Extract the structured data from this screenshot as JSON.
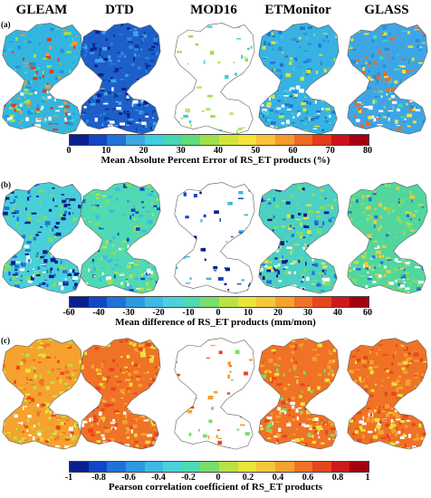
{
  "columns": [
    "GLEAM",
    "DTD",
    "MOD16",
    "ETMonitor",
    "GLASS"
  ],
  "rows": [
    {
      "label": "(a)",
      "colorbar_title": "Mean Absolute Percent Error of RS_ET products (%)",
      "tick_labels": [
        "0",
        "10",
        "20",
        "30",
        "40",
        "50",
        "60",
        "70",
        "80"
      ],
      "colors": [
        "#0a1f8f",
        "#1046c8",
        "#1f73d8",
        "#3fa6e6",
        "#3fcde0",
        "#45d7b4",
        "#5fdc7a",
        "#9ee04a",
        "#d4e53a",
        "#f3e33c",
        "#f9c23a",
        "#f59a2c",
        "#ef6a22",
        "#e63a1c",
        "#d0101a",
        "#a50010"
      ],
      "maps": [
        {
          "id": "gleam",
          "dominant": "#32b6e0",
          "minor": [
            "#2a8fd6",
            "#4fd2c6",
            "#9fe050",
            "#f59a2c",
            "#e63a1c"
          ]
        },
        {
          "id": "dtd",
          "dominant": "#1d5fc9",
          "minor": [
            "#2c86dc",
            "#133a9e",
            "#3fa6e6",
            "#0a1f8f"
          ]
        },
        {
          "id": "mod16",
          "dominant": "#ffffff",
          "minor": [
            "#bfe36a",
            "#9ee04a",
            "#3fcde0"
          ]
        },
        {
          "id": "etmonitor",
          "dominant": "#38b2e2",
          "minor": [
            "#2a8fd6",
            "#45c9d8",
            "#1f73d8",
            "#d4e53a"
          ]
        },
        {
          "id": "glass",
          "dominant": "#3fa6e6",
          "minor": [
            "#2a8fd6",
            "#45d7b4",
            "#f3e33c",
            "#ef6a22"
          ]
        }
      ]
    },
    {
      "label": "(b)",
      "colorbar_title": "Mean difference of RS_ET products (mm/mon)",
      "tick_labels": [
        "-60",
        "-40",
        "-30",
        "-20",
        "-10",
        "0",
        "10",
        "20",
        "30",
        "40",
        "60"
      ],
      "colors": [
        "#0a1f8f",
        "#1046c8",
        "#1f73d8",
        "#2c9ae0",
        "#3fb8e6",
        "#4cd0dc",
        "#4fd9b4",
        "#7ade6a",
        "#b8e246",
        "#e7e53a",
        "#f3c93a",
        "#f5a22e",
        "#ef7226",
        "#e5461e",
        "#d0181a",
        "#a50010"
      ],
      "maps": [
        {
          "id": "gleam",
          "dominant": "#49cfd8",
          "minor": [
            "#1f73d8",
            "#0a1f8f",
            "#7ade6a"
          ]
        },
        {
          "id": "dtd",
          "dominant": "#4fd9b4",
          "minor": [
            "#7ade6a",
            "#b8e246",
            "#3fb8e6",
            "#1046c8"
          ]
        },
        {
          "id": "mod16",
          "dominant": "#ffffff",
          "minor": [
            "#1046c8",
            "#0a1f8f",
            "#3fb8e6"
          ]
        },
        {
          "id": "etmonitor",
          "dominant": "#4cd0c4",
          "minor": [
            "#7ade6a",
            "#1f73d8",
            "#0a1f8f",
            "#e7e53a"
          ]
        },
        {
          "id": "glass",
          "dominant": "#52d69e",
          "minor": [
            "#7ade6a",
            "#b8e246",
            "#f3c93a",
            "#1f73d8"
          ]
        }
      ]
    },
    {
      "label": "(c)",
      "colorbar_title": "Pearson correlation coefficient  of RS_ET products",
      "tick_labels": [
        "-1",
        "-0.8",
        "-0.6",
        "-0.4",
        "-0.2",
        "0",
        "0.2",
        "0.4",
        "0.6",
        "0.8",
        "1"
      ],
      "colors": [
        "#0a1f8f",
        "#1046c8",
        "#1f73d8",
        "#2c9ae0",
        "#3fb8e6",
        "#4cd0dc",
        "#4fd9b4",
        "#7ade6a",
        "#b8e246",
        "#e7e53a",
        "#f3c93a",
        "#f5a22e",
        "#ef7226",
        "#e5461e",
        "#d0181a",
        "#a50010"
      ],
      "maps": [
        {
          "id": "gleam",
          "dominant": "#f5a22e",
          "minor": [
            "#e7e53a",
            "#ef7226",
            "#b8e246",
            "#e5461e"
          ]
        },
        {
          "id": "dtd",
          "dominant": "#ef7226",
          "minor": [
            "#f5a22e",
            "#e5461e",
            "#e7e53a"
          ]
        },
        {
          "id": "mod16",
          "dominant": "#ffffff",
          "minor": [
            "#e5461e",
            "#f5a22e",
            "#7ade6a"
          ]
        },
        {
          "id": "etmonitor",
          "dominant": "#ef7226",
          "minor": [
            "#e5461e",
            "#f5a22e",
            "#e7e53a",
            "#7ade6a"
          ]
        },
        {
          "id": "glass",
          "dominant": "#ef7226",
          "minor": [
            "#e5461e",
            "#f5a22e",
            "#e7e53a"
          ]
        }
      ]
    }
  ]
}
